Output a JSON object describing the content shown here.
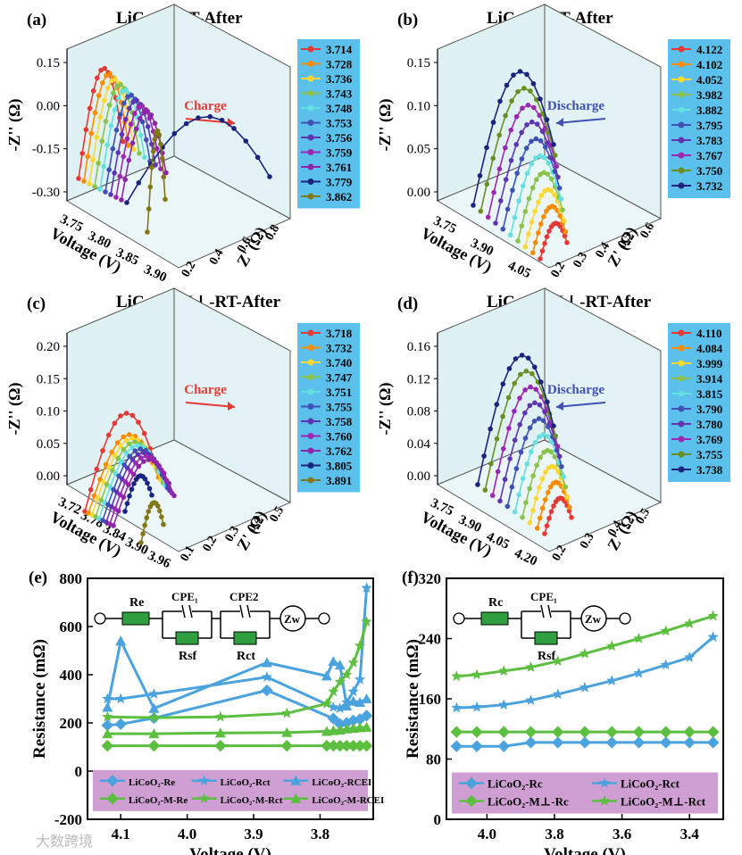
{
  "watermark": "大数跨境",
  "chart_data": [
    {
      "id": "a",
      "panel_label": "(a)",
      "type": "3d-line",
      "title": "LiCoO₂-RT-After",
      "xlabel": "Z' (Ω)",
      "ylabel": "-Z'' (Ω)",
      "zlabel": "Voltage (V)",
      "z_ticks": [
        "3.75",
        "3.80",
        "3.85",
        "3.90"
      ],
      "x_ticks": [
        "0.2",
        "0.4",
        "0.6",
        "0.8"
      ],
      "y_ticks": [
        "-0.30",
        "-0.15",
        "0.00",
        "0.15"
      ],
      "annotation": "Charge",
      "annotation_color": "#e53935",
      "legend": [
        "3.714",
        "3.728",
        "3.736",
        "3.743",
        "3.748",
        "3.753",
        "3.756",
        "3.759",
        "3.761",
        "3.779",
        "3.862"
      ]
    },
    {
      "id": "b",
      "panel_label": "(b)",
      "type": "3d-line",
      "title": "LiCoO₂-RT-After",
      "xlabel": "Z' (Ω)",
      "ylabel": "-Z'' (Ω)",
      "zlabel": "Voltage (V)",
      "z_ticks": [
        "3.75",
        "3.90",
        "4.05"
      ],
      "x_ticks": [
        "0.2",
        "0.3",
        "0.4",
        "0.5",
        "0.6"
      ],
      "y_ticks": [
        "0.00",
        "0.05",
        "0.10",
        "0.15"
      ],
      "annotation": "Discharge",
      "annotation_color": "#3f51b5",
      "legend": [
        "4.122",
        "4.102",
        "4.052",
        "3.982",
        "3.882",
        "3.795",
        "3.783",
        "3.767",
        "3.750",
        "3.732"
      ]
    },
    {
      "id": "c",
      "panel_label": "(c)",
      "type": "3d-line",
      "title": "LiCoO₂-M⊥-RT-After",
      "xlabel": "Z' (Ω)",
      "ylabel": "-Z'' (Ω)",
      "zlabel": "Voltage (V)",
      "z_ticks": [
        "3.72",
        "3.78",
        "3.84",
        "3.90",
        "3.96"
      ],
      "x_ticks": [
        "0.1",
        "0.2",
        "0.3",
        "0.4",
        "0.5"
      ],
      "y_ticks": [
        "0.00",
        "0.05",
        "0.10",
        "0.15",
        "0.20"
      ],
      "annotation": "Charge",
      "annotation_color": "#e53935",
      "legend": [
        "3.718",
        "3.732",
        "3.740",
        "3.747",
        "3.751",
        "3.755",
        "3.758",
        "3.760",
        "3.762",
        "3.805",
        "3.891"
      ]
    },
    {
      "id": "d",
      "panel_label": "(d)",
      "type": "3d-line",
      "title": "LiCoO₂-M⊥-RT-After",
      "xlabel": "Z' (Ω)",
      "ylabel": "-Z'' (Ω)",
      "zlabel": "Voltage (V)",
      "z_ticks": [
        "3.75",
        "3.90",
        "4.05",
        "4.20"
      ],
      "x_ticks": [
        "0.2",
        "0.3",
        "0.4",
        "0.5"
      ],
      "y_ticks": [
        "0.00",
        "0.04",
        "0.08",
        "0.12",
        "0.16"
      ],
      "annotation": "Discharge",
      "annotation_color": "#3f51b5",
      "legend": [
        "4.110",
        "4.084",
        "3.999",
        "3.914",
        "3.815",
        "3.790",
        "3.780",
        "3.769",
        "3.755",
        "3.738"
      ]
    },
    {
      "id": "e",
      "panel_label": "(e)",
      "type": "line",
      "xlabel": "Voltage (V)",
      "ylabel": "Resistance (mΩ)",
      "xlim": [
        4.15,
        3.72
      ],
      "ylim": [
        -200,
        800
      ],
      "x_ticks": [
        4.1,
        4.0,
        3.9,
        3.8
      ],
      "y_ticks": [
        -200,
        0,
        200,
        400,
        600,
        800
      ],
      "circuit": {
        "r1": "Re",
        "cpe1": "CPE₁",
        "r2": "Rsf",
        "cpe2": "CPE2",
        "r3": "Rct",
        "w": "Zw"
      },
      "legend_entries": [
        "LiCoO₂-Re",
        "LiCoO₂-Rct",
        "LiCoO₂-RCEI",
        "LiCoO₂-M-Re",
        "LiCoO₂-M-Rct",
        "LiCoO₂-M-RCEI"
      ],
      "series": [
        {
          "name": "LiCoO₂-Re",
          "color": "#4aa3df",
          "marker": "diamond",
          "x": [
            4.12,
            4.1,
            4.05,
            3.88,
            3.78,
            3.77,
            3.76,
            3.75,
            3.74,
            3.73
          ],
          "values": [
            190,
            195,
            220,
            335,
            218,
            195,
            200,
            210,
            215,
            230
          ]
        },
        {
          "name": "LiCoO₂-Rct",
          "color": "#4aa3df",
          "marker": "star",
          "x": [
            4.12,
            4.1,
            4.05,
            3.88,
            3.78,
            3.77,
            3.76,
            3.75,
            3.74,
            3.73
          ],
          "values": [
            300,
            300,
            320,
            390,
            265,
            260,
            285,
            330,
            380,
            760
          ]
        },
        {
          "name": "LiCoO₂-RCEI",
          "color": "#4aa3df",
          "marker": "triangle",
          "x": [
            4.12,
            4.1,
            4.05,
            3.88,
            3.79,
            3.78,
            3.77,
            3.76,
            3.75,
            3.74,
            3.73
          ],
          "values": [
            265,
            540,
            260,
            450,
            395,
            455,
            440,
            270,
            290,
            285,
            300
          ]
        },
        {
          "name": "LiCoO₂-M-Re",
          "color": "#5cbf3f",
          "marker": "diamond",
          "x": [
            4.12,
            4.05,
            3.95,
            3.85,
            3.79,
            3.78,
            3.77,
            3.76,
            3.75,
            3.74,
            3.73
          ],
          "values": [
            105,
            105,
            105,
            105,
            105,
            105,
            105,
            105,
            105,
            105,
            105
          ]
        },
        {
          "name": "LiCoO₂-M-Rct",
          "color": "#5cbf3f",
          "marker": "star",
          "x": [
            4.12,
            4.05,
            3.95,
            3.85,
            3.79,
            3.78,
            3.77,
            3.76,
            3.75,
            3.74,
            3.73
          ],
          "values": [
            225,
            222,
            225,
            240,
            280,
            330,
            370,
            400,
            450,
            520,
            620
          ]
        },
        {
          "name": "LiCoO₂-M-RCEI",
          "color": "#5cbf3f",
          "marker": "triangle",
          "x": [
            4.12,
            4.05,
            3.95,
            3.85,
            3.79,
            3.78,
            3.77,
            3.76,
            3.75,
            3.74,
            3.73
          ],
          "values": [
            155,
            155,
            158,
            160,
            165,
            168,
            170,
            175,
            178,
            180,
            182
          ]
        }
      ]
    },
    {
      "id": "f",
      "panel_label": "(f)",
      "type": "line",
      "xlabel": "Voltage (V)",
      "ylabel": "Resistance (mΩ)",
      "xlim": [
        4.12,
        3.3
      ],
      "ylim": [
        0,
        320
      ],
      "x_ticks": [
        4.0,
        3.8,
        3.6,
        3.4
      ],
      "y_ticks": [
        0,
        80,
        160,
        240,
        320
      ],
      "circuit": {
        "r1": "Rc",
        "cpe1": "CPE₁",
        "r2": "Rsf",
        "w": "Zw"
      },
      "legend_entries": [
        "LiCoO₂-Rc",
        "LiCoO₂-Rct",
        "LiCoO₂-M⊥-Rc",
        "LiCoO₂-M⊥-Rct"
      ],
      "series": [
        {
          "name": "LiCoO₂-Rc",
          "color": "#4aa3df",
          "marker": "diamond",
          "x": [
            4.09,
            4.03,
            3.95,
            3.87,
            3.79,
            3.71,
            3.63,
            3.55,
            3.47,
            3.4,
            3.33
          ],
          "values": [
            97,
            97,
            97,
            102,
            102,
            102,
            102,
            102,
            102,
            102,
            102
          ]
        },
        {
          "name": "LiCoO₂-Rct",
          "color": "#4aa3df",
          "marker": "star",
          "x": [
            4.09,
            4.03,
            3.95,
            3.87,
            3.79,
            3.71,
            3.63,
            3.55,
            3.47,
            3.4,
            3.33
          ],
          "values": [
            148,
            149,
            152,
            158,
            166,
            175,
            184,
            194,
            205,
            215,
            242
          ]
        },
        {
          "name": "LiCoO₂-M⊥-Rc",
          "color": "#5cbf3f",
          "marker": "diamond",
          "x": [
            4.09,
            4.03,
            3.95,
            3.87,
            3.79,
            3.71,
            3.63,
            3.55,
            3.47,
            3.4,
            3.33
          ],
          "values": [
            116,
            116,
            116,
            116,
            116,
            116,
            116,
            116,
            116,
            116,
            116
          ]
        },
        {
          "name": "LiCoO₂-M⊥-Rct",
          "color": "#5cbf3f",
          "marker": "star",
          "x": [
            4.09,
            4.03,
            3.95,
            3.87,
            3.79,
            3.71,
            3.63,
            3.55,
            3.47,
            3.4,
            3.33
          ],
          "values": [
            190,
            192,
            197,
            202,
            210,
            220,
            230,
            240,
            250,
            260,
            270
          ]
        }
      ]
    }
  ]
}
